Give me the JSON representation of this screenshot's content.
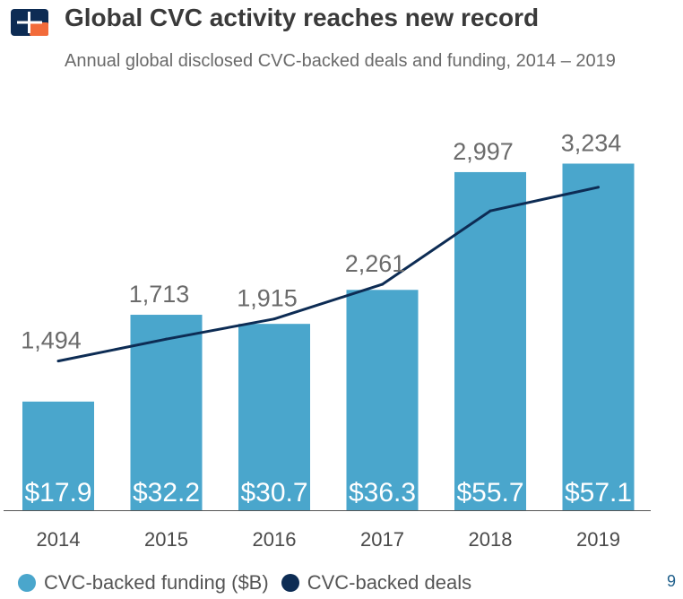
{
  "header": {
    "title": "Global CVC activity reaches new record",
    "subtitle": "Annual global disclosed CVC-backed deals and funding, 2014 – 2019"
  },
  "colors": {
    "bar": "#4aa6cc",
    "line": "#0d2c54",
    "logo_blue": "#0d2c54",
    "logo_orange": "#f26b3a"
  },
  "chart_data": {
    "type": "bar",
    "title": "Global CVC activity reaches new record",
    "subtitle": "Annual global disclosed CVC-backed deals and funding, 2014 – 2019",
    "categories": [
      "2014",
      "2015",
      "2016",
      "2017",
      "2018",
      "2019"
    ],
    "series": [
      {
        "name": "CVC-backed funding ($B)",
        "type": "bar",
        "values": [
          17.9,
          32.2,
          30.7,
          36.3,
          55.7,
          57.1
        ],
        "labels": [
          "$17.9",
          "$32.2",
          "$30.7",
          "$36.3",
          "$55.7",
          "$57.1"
        ]
      },
      {
        "name": "CVC-backed deals",
        "type": "line",
        "values": [
          1494,
          1713,
          1915,
          2261,
          2997,
          3234
        ],
        "labels": [
          "1,494",
          "1,713",
          "1,915",
          "2,261",
          "2,997",
          "3,234"
        ]
      }
    ],
    "y_funding_range": [
      0,
      65
    ],
    "y_deals_range": [
      0,
      3950
    ],
    "grid": false,
    "legend_position": "bottom-left"
  },
  "legend": {
    "funding_label": "CVC-backed funding ($B)",
    "deals_label": "CVC-backed deals"
  },
  "page_number": "9"
}
